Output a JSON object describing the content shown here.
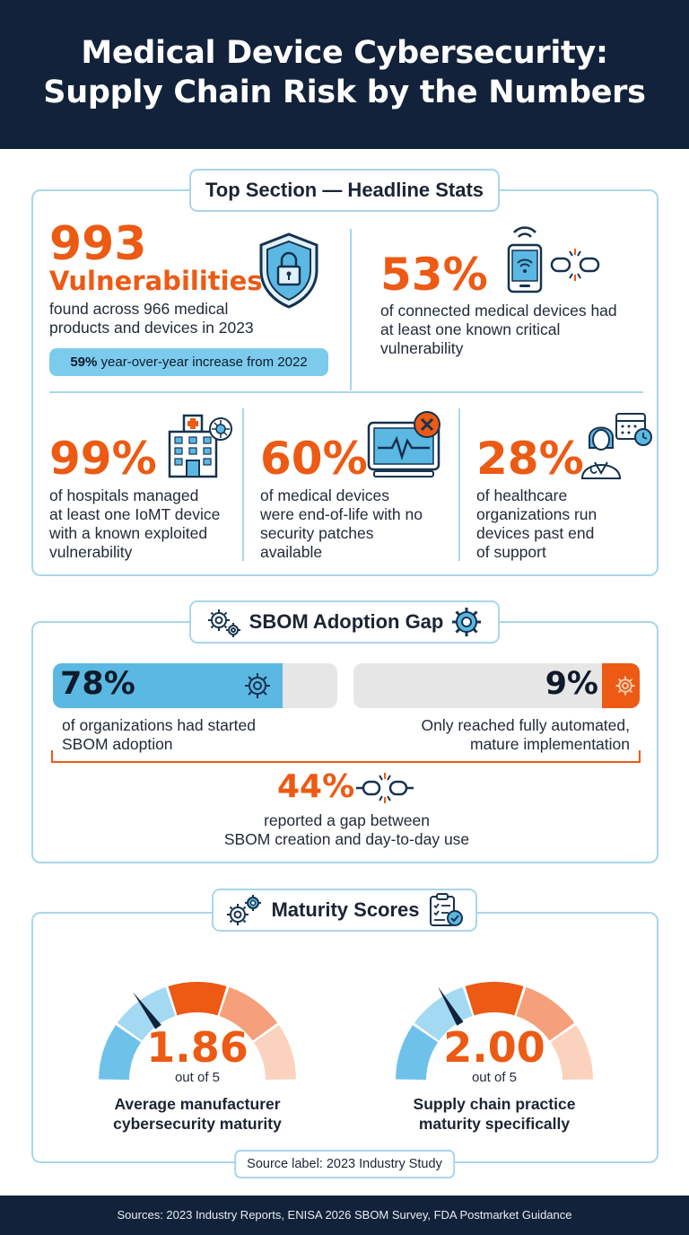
{
  "header": {
    "title_line1": "Medical Device Cybersecurity:",
    "title_line2": "Supply Chain Risk by the Numbers"
  },
  "headline": {
    "section_title": "Top Section — Headline Stats",
    "vulnerabilities": {
      "number": "993",
      "label": "Vulnerabilities",
      "desc_line1": "found across 966 medical",
      "desc_line2": "products and devices in 2023",
      "badge_strong": "59%",
      "badge_rest": " year-over-year increase from 2022"
    },
    "connected": {
      "number": "53%",
      "desc_line1": "of connected medical devices had",
      "desc_line2": "at least one known critical",
      "desc_line3": "vulnerability"
    },
    "hospitals": {
      "number": "99%",
      "desc_line1": "of hospitals managed",
      "desc_line2": "at least one IoMT device",
      "desc_line3": "with a known exploited",
      "desc_line4": "vulnerability"
    },
    "eol": {
      "number": "60%",
      "desc_line1": "of medical devices",
      "desc_line2": "were end-of-life with no",
      "desc_line3": "security patches",
      "desc_line4": "available"
    },
    "past_support": {
      "number": "28%",
      "desc_line1": "of healthcare",
      "desc_line2": "organizations run",
      "desc_line3": "devices past end",
      "desc_line4": "of support"
    }
  },
  "sbom": {
    "section_title": "SBOM Adoption Gap",
    "started": {
      "value": "78%",
      "fraction": 0.78,
      "desc_line1": "of organizations had started",
      "desc_line2": "SBOM adoption"
    },
    "automated": {
      "value": "9%",
      "fraction": 0.09,
      "desc_line1": "Only reached fully automated,",
      "desc_line2": "mature implementation"
    },
    "gap": {
      "value": "44%",
      "desc_line1": "reported a gap between",
      "desc_line2": "SBOM creation and day-to-day use"
    }
  },
  "maturity": {
    "section_title": "Maturity Scores",
    "gauges": [
      {
        "value": "1.86",
        "score": 1.86,
        "max": 5,
        "sub": "out of 5",
        "label_line1": "Average manufacturer",
        "label_line2": "cybersecurity maturity"
      },
      {
        "value": "2.00",
        "score": 2.0,
        "max": 5,
        "sub": "out of 5",
        "label_line1": "Supply chain practice",
        "label_line2": "maturity specifically"
      }
    ],
    "source_label": "Source label: 2023 Industry Study"
  },
  "footer": {
    "sources": "Sources: 2023 Industry Reports, ENISA 2026 SBOM Survey, FDA Postmarket Guidance"
  },
  "colors": {
    "navy": "#12223a",
    "orange": "#ec5a14",
    "light_blue": "#5bb8e3",
    "panel_border": "#a9d6ea"
  },
  "icons": [
    "shield-lock-icon",
    "smartphone-wifi-icon",
    "broken-link-icon",
    "hospital-icon",
    "virus-icon",
    "monitor-heartbeat-icon",
    "close-icon",
    "doctor-calendar-icon",
    "gears-icon",
    "gear-icon",
    "clipboard-check-icon"
  ]
}
